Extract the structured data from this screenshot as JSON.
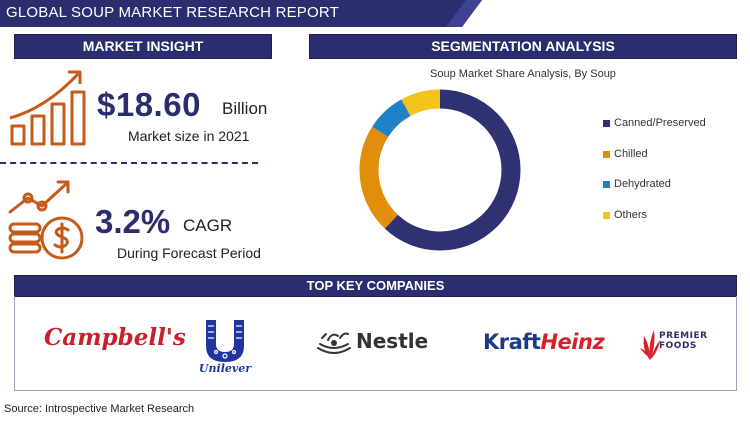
{
  "report_title": "GLOBAL SOUP MARKET RESEARCH REPORT",
  "market_insight": {
    "heading": "MARKET INSIGHT",
    "market_size_value": "$18.60",
    "market_size_unit": "Billion",
    "market_size_caption": "Market size in 2021",
    "cagr_value": "3.2%",
    "cagr_unit": "CAGR",
    "cagr_caption": "During Forecast Period",
    "accent_color": "#c55a1a"
  },
  "segmentation": {
    "heading": "SEGMENTATION ANALYSIS"
  },
  "chart_data": {
    "type": "pie",
    "variant": "donut",
    "title": "Soup Market Share Analysis, By Soup",
    "categories": [
      "Canned/Preserved",
      "Chilled",
      "Dehydrated",
      "Others"
    ],
    "values": [
      62,
      22,
      8,
      8
    ],
    "colors": [
      "#2f3272",
      "#e08e0b",
      "#1f82c8",
      "#f2c318"
    ],
    "legend_position": "right"
  },
  "companies": {
    "heading": "TOP KEY COMPANIES",
    "logos": [
      {
        "name": "campbells",
        "text": "Campbell's"
      },
      {
        "name": "unilever",
        "text": "Unilever"
      },
      {
        "name": "nestle",
        "text": "Nestle"
      },
      {
        "name": "kraft-heinz",
        "text_a": "Kraft",
        "text_b": "Heinz"
      },
      {
        "name": "premier-foods",
        "line1": "PREMIER",
        "line2": "FOODS"
      }
    ]
  },
  "source": "Source: Introspective Market Research",
  "theme": {
    "navy": "#2b2d6e"
  }
}
